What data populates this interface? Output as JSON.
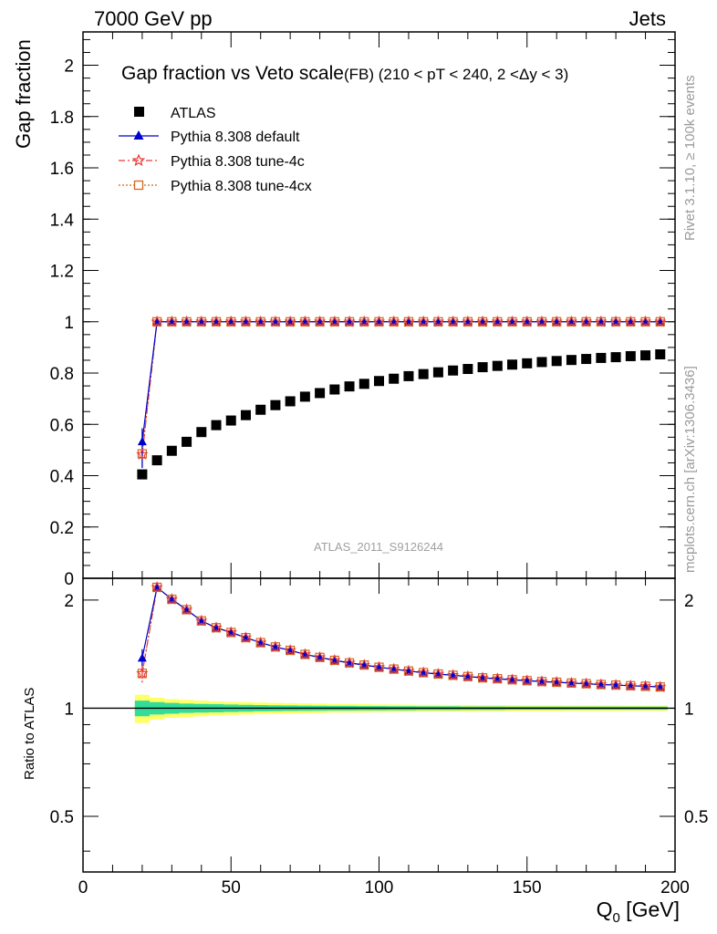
{
  "header": {
    "left": "7000 GeV pp",
    "right": "Jets"
  },
  "side": {
    "rivet": "Rivet 3.1.10, ≥ 100k events",
    "mcplots": "mcplots.cern.ch [arXiv:1306.3436]"
  },
  "colors": {
    "atlas": "#000000",
    "default": "#0000cc",
    "tune4c": "#e83a3a",
    "tune4cx": "#d2691e",
    "band_inner": "#33dd99",
    "band_outer": "#ffff66"
  },
  "chart_data": [
    {
      "type": "scatter",
      "title": "Gap fraction vs Veto scale",
      "subtitle": "(FB) (210 < pT < 240, 2 <Δy < 3)",
      "xlabel": "",
      "ylabel": "Gap fraction",
      "xlim": [
        0,
        200
      ],
      "ylim": [
        0,
        2.13
      ],
      "yticks": [
        "0",
        "0.2",
        "0.4",
        "0.6",
        "0.8",
        "1",
        "1.2",
        "1.4",
        "1.6",
        "1.8",
        "2"
      ],
      "watermark": "ATLAS_2011_S9126244",
      "legend_position": "top-left",
      "x": [
        20,
        25,
        30,
        35,
        40,
        45,
        50,
        55,
        60,
        65,
        70,
        75,
        80,
        85,
        90,
        95,
        100,
        105,
        110,
        115,
        120,
        125,
        130,
        135,
        140,
        145,
        150,
        155,
        160,
        165,
        170,
        175,
        180,
        185,
        190,
        195
      ],
      "series": [
        {
          "name": "ATLAS",
          "marker": "square",
          "values": [
            0.405,
            0.46,
            0.497,
            0.532,
            0.57,
            0.597,
            0.615,
            0.636,
            0.657,
            0.675,
            0.69,
            0.708,
            0.722,
            0.736,
            0.748,
            0.758,
            0.769,
            0.778,
            0.788,
            0.796,
            0.803,
            0.81,
            0.816,
            0.823,
            0.828,
            0.833,
            0.838,
            0.843,
            0.847,
            0.851,
            0.855,
            0.859,
            0.862,
            0.866,
            0.869,
            0.873
          ]
        },
        {
          "name": "Pythia 8.308 default",
          "marker": "triangle",
          "values": [
            0.533,
            1,
            1,
            1,
            1,
            1,
            1,
            1,
            1,
            1,
            1,
            1,
            1,
            1,
            1,
            1,
            1,
            1,
            1,
            1,
            1,
            1,
            1,
            1,
            1,
            1,
            1,
            1,
            1,
            1,
            1,
            1,
            1,
            1,
            1,
            1
          ]
        },
        {
          "name": "Pythia 8.308 tune-4c",
          "marker": "star",
          "values": [
            0.483,
            1,
            1,
            1,
            1,
            1,
            1,
            1,
            1,
            1,
            1,
            1,
            1,
            1,
            1,
            1,
            1,
            1,
            1,
            1,
            1,
            1,
            1,
            1,
            1,
            1,
            1,
            1,
            1,
            1,
            1,
            1,
            1,
            1,
            1,
            1
          ]
        },
        {
          "name": "Pythia 8.308 tune-4cx",
          "marker": "open-square",
          "values": [
            0.485,
            1,
            1,
            1,
            1,
            1,
            1,
            1,
            1,
            1,
            1,
            1,
            1,
            1,
            1,
            1,
            1,
            1,
            1,
            1,
            1,
            1,
            1,
            1,
            1,
            1,
            1,
            1,
            1,
            1,
            1,
            1,
            1,
            1,
            1,
            1
          ]
        }
      ]
    },
    {
      "type": "line",
      "xlabel": "Q_0 [GeV]",
      "xlabel_main": "Q",
      "xlabel_sub": "0",
      "xlabel_unit": " [GeV]",
      "ylabel": "Ratio to ATLAS",
      "xlim": [
        0,
        200
      ],
      "ylim": [
        0.35,
        2.3
      ],
      "xticks": [
        "0",
        "50",
        "100",
        "150",
        "200"
      ],
      "yticks": [
        "0.5",
        "1",
        "2"
      ],
      "x": [
        20,
        25,
        30,
        35,
        40,
        45,
        50,
        55,
        60,
        65,
        70,
        75,
        80,
        85,
        90,
        95,
        100,
        105,
        110,
        115,
        120,
        125,
        130,
        135,
        140,
        145,
        150,
        155,
        160,
        165,
        170,
        175,
        180,
        185,
        190,
        195
      ],
      "band_inner": [
        0.05,
        0.04,
        0.035,
        0.03,
        0.028,
        0.026,
        0.024,
        0.022,
        0.02,
        0.019,
        0.018,
        0.017,
        0.016,
        0.015,
        0.015,
        0.014,
        0.014,
        0.013,
        0.013,
        0.012,
        0.012,
        0.012,
        0.011,
        0.011,
        0.011,
        0.01,
        0.01,
        0.01,
        0.01,
        0.01,
        0.01,
        0.01,
        0.01,
        0.01,
        0.01,
        0.01
      ],
      "band_outer": [
        0.09,
        0.07,
        0.06,
        0.055,
        0.05,
        0.045,
        0.042,
        0.04,
        0.037,
        0.035,
        0.033,
        0.031,
        0.03,
        0.028,
        0.027,
        0.026,
        0.025,
        0.024,
        0.023,
        0.022,
        0.022,
        0.021,
        0.021,
        0.02,
        0.02,
        0.02,
        0.019,
        0.019,
        0.019,
        0.018,
        0.018,
        0.018,
        0.018,
        0.017,
        0.017,
        0.017
      ],
      "series": [
        {
          "name": "Pythia 8.308 default",
          "values": [
            1.38,
            2.17,
            2.01,
            1.88,
            1.75,
            1.675,
            1.625,
            1.572,
            1.522,
            1.481,
            1.449,
            1.412,
            1.385,
            1.359,
            1.337,
            1.319,
            1.3,
            1.285,
            1.269,
            1.256,
            1.245,
            1.235,
            1.225,
            1.215,
            1.208,
            1.2,
            1.193,
            1.186,
            1.181,
            1.175,
            1.17,
            1.164,
            1.16,
            1.155,
            1.151,
            1.146
          ]
        },
        {
          "name": "Pythia 8.308 tune-4c",
          "values": [
            1.25,
            2.17,
            2.01,
            1.88,
            1.75,
            1.675,
            1.625,
            1.572,
            1.522,
            1.481,
            1.449,
            1.412,
            1.385,
            1.359,
            1.337,
            1.319,
            1.3,
            1.285,
            1.269,
            1.256,
            1.245,
            1.235,
            1.225,
            1.215,
            1.208,
            1.2,
            1.193,
            1.186,
            1.181,
            1.175,
            1.17,
            1.164,
            1.16,
            1.155,
            1.151,
            1.146
          ]
        },
        {
          "name": "Pythia 8.308 tune-4cx",
          "values": [
            1.25,
            2.17,
            2.01,
            1.88,
            1.75,
            1.675,
            1.625,
            1.572,
            1.522,
            1.481,
            1.449,
            1.412,
            1.385,
            1.359,
            1.337,
            1.319,
            1.3,
            1.285,
            1.269,
            1.256,
            1.245,
            1.235,
            1.225,
            1.215,
            1.208,
            1.2,
            1.193,
            1.186,
            1.181,
            1.175,
            1.17,
            1.164,
            1.16,
            1.155,
            1.151,
            1.146
          ]
        }
      ]
    }
  ]
}
